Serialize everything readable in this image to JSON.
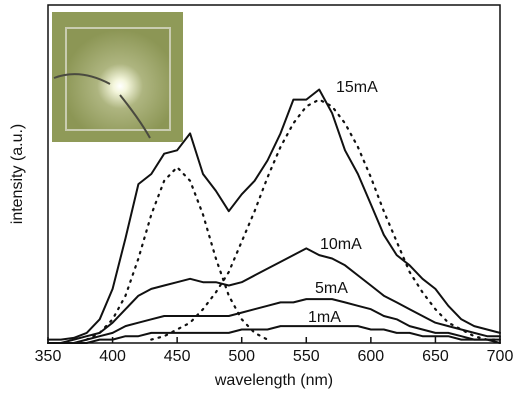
{
  "chart_data": {
    "type": "line",
    "x_label": "wavelength (nm)",
    "y_label": "intensity (a.u.)",
    "x": [
      350,
      360,
      370,
      380,
      390,
      400,
      410,
      420,
      430,
      440,
      450,
      460,
      470,
      480,
      490,
      500,
      510,
      520,
      530,
      540,
      550,
      560,
      570,
      580,
      590,
      600,
      610,
      620,
      630,
      640,
      650,
      660,
      670,
      680,
      690,
      700
    ],
    "series": [
      {
        "name": "15mA",
        "color": "#111111",
        "style": "solid",
        "values": [
          0.01,
          0.01,
          0.015,
          0.03,
          0.07,
          0.16,
          0.31,
          0.47,
          0.5,
          0.56,
          0.57,
          0.62,
          0.5,
          0.45,
          0.39,
          0.44,
          0.48,
          0.54,
          0.62,
          0.72,
          0.72,
          0.75,
          0.68,
          0.57,
          0.5,
          0.41,
          0.32,
          0.26,
          0.23,
          0.19,
          0.16,
          0.11,
          0.07,
          0.05,
          0.04,
          0.03
        ]
      },
      {
        "name": "10mA",
        "color": "#111111",
        "style": "solid",
        "values": [
          0.0,
          0.0,
          0.01,
          0.02,
          0.03,
          0.06,
          0.1,
          0.14,
          0.16,
          0.17,
          0.18,
          0.19,
          0.18,
          0.18,
          0.17,
          0.18,
          0.2,
          0.22,
          0.24,
          0.26,
          0.28,
          0.26,
          0.25,
          0.23,
          0.2,
          0.17,
          0.14,
          0.12,
          0.1,
          0.08,
          0.06,
          0.05,
          0.04,
          0.03,
          0.02,
          0.02
        ]
      },
      {
        "name": "5mA",
        "color": "#111111",
        "style": "solid",
        "values": [
          0.0,
          0.0,
          0.0,
          0.01,
          0.02,
          0.03,
          0.05,
          0.06,
          0.07,
          0.08,
          0.08,
          0.08,
          0.08,
          0.08,
          0.08,
          0.09,
          0.1,
          0.11,
          0.12,
          0.12,
          0.13,
          0.13,
          0.13,
          0.12,
          0.11,
          0.1,
          0.08,
          0.07,
          0.05,
          0.04,
          0.03,
          0.03,
          0.02,
          0.01,
          0.01,
          0.01
        ]
      },
      {
        "name": "1mA",
        "color": "#111111",
        "style": "solid",
        "values": [
          0.0,
          0.0,
          0.0,
          0.0,
          0.01,
          0.01,
          0.02,
          0.02,
          0.03,
          0.03,
          0.03,
          0.03,
          0.03,
          0.03,
          0.03,
          0.04,
          0.04,
          0.04,
          0.05,
          0.05,
          0.05,
          0.05,
          0.05,
          0.05,
          0.05,
          0.04,
          0.04,
          0.03,
          0.03,
          0.02,
          0.02,
          0.02,
          0.01,
          0.01,
          0.01,
          0.0
        ]
      },
      {
        "color": "#111111",
        "style": "dotted",
        "values": [
          null,
          null,
          null,
          0.01,
          0.03,
          0.07,
          0.14,
          0.25,
          0.38,
          0.48,
          0.52,
          0.48,
          0.38,
          0.25,
          0.14,
          0.07,
          0.03,
          0.01,
          null,
          null,
          null,
          null,
          null,
          null,
          null,
          null,
          null,
          null,
          null,
          null,
          null,
          null,
          null,
          null,
          null,
          null
        ]
      },
      {
        "color": "#111111",
        "style": "dotted",
        "values": [
          null,
          null,
          null,
          null,
          null,
          null,
          null,
          null,
          0.01,
          0.02,
          0.04,
          0.06,
          0.1,
          0.15,
          0.21,
          0.3,
          0.39,
          0.49,
          0.58,
          0.65,
          0.7,
          0.72,
          0.7,
          0.65,
          0.58,
          0.49,
          0.39,
          0.3,
          0.21,
          0.15,
          0.1,
          0.06,
          0.04,
          0.02,
          0.01,
          0.01
        ]
      }
    ],
    "xlim": [
      350,
      700
    ],
    "xticks": [
      350,
      400,
      450,
      500,
      550,
      600,
      650,
      700
    ],
    "ylim": [
      0,
      1
    ]
  }
}
